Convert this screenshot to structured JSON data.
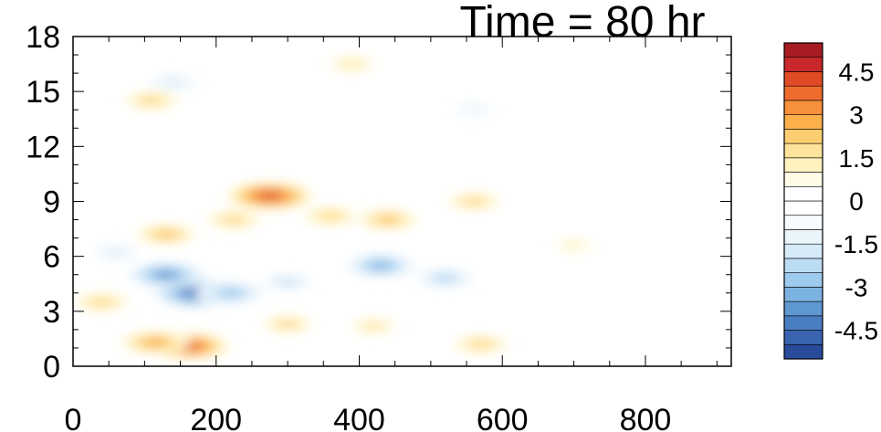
{
  "chart_data": {
    "type": "heatmap",
    "title": "Time = 80 hr",
    "xlabel": "",
    "ylabel": "",
    "xlim": [
      0,
      920
    ],
    "ylim": [
      0,
      18
    ],
    "x_ticks": [
      0,
      200,
      400,
      600,
      800
    ],
    "x_tick_labels": [
      "0",
      "200",
      "400",
      "600",
      "800"
    ],
    "y_ticks": [
      0,
      3,
      6,
      9,
      12,
      15,
      18
    ],
    "y_tick_labels": [
      "0",
      "3",
      "6",
      "9",
      "12",
      "15",
      "18"
    ],
    "colorbar": {
      "min": -5.5,
      "max": 5.5,
      "step": 0.5,
      "tick_values": [
        4.5,
        3,
        1.5,
        0,
        -1.5,
        -3,
        -4.5
      ],
      "tick_labels": [
        "4.5",
        "3",
        "1.5",
        "0",
        "-1.5",
        "-3",
        "-4.5"
      ],
      "colors": [
        "#2a4b9b",
        "#3a63b0",
        "#4a7ec2",
        "#5f97d1",
        "#7cb2e0",
        "#9ccbee",
        "#bcdcf3",
        "#d6eaf8",
        "#e9f4fb",
        "#f6fbfe",
        "#ffffff",
        "#ffffff",
        "#fffbe6",
        "#fff1c0",
        "#fee39a",
        "#fdcd72",
        "#fbb04b",
        "#f7903a",
        "#f06c2c",
        "#e04a25",
        "#c8282a",
        "#a71c22"
      ]
    },
    "features": [
      {
        "x": 160,
        "y": 1.1,
        "value": 4.2
      },
      {
        "x": 115,
        "y": 1.3,
        "value": 3.0
      },
      {
        "x": 300,
        "y": 2.3,
        "value": 1.6
      },
      {
        "x": 420,
        "y": 2.2,
        "value": 1.3
      },
      {
        "x": 570,
        "y": 1.2,
        "value": 2.0
      },
      {
        "x": 175,
        "y": 4.0,
        "value": -5.0
      },
      {
        "x": 130,
        "y": 5.0,
        "value": -3.8
      },
      {
        "x": 220,
        "y": 4.0,
        "value": -3.0
      },
      {
        "x": 300,
        "y": 4.6,
        "value": -1.6
      },
      {
        "x": 430,
        "y": 5.5,
        "value": -3.2
      },
      {
        "x": 520,
        "y": 4.8,
        "value": -2.2
      },
      {
        "x": 130,
        "y": 7.2,
        "value": 2.4
      },
      {
        "x": 225,
        "y": 8.0,
        "value": 2.0
      },
      {
        "x": 275,
        "y": 9.3,
        "value": 4.5
      },
      {
        "x": 360,
        "y": 8.2,
        "value": 2.0
      },
      {
        "x": 440,
        "y": 8.0,
        "value": 2.4
      },
      {
        "x": 560,
        "y": 9.0,
        "value": 1.8
      },
      {
        "x": 700,
        "y": 6.6,
        "value": 0.6
      },
      {
        "x": 110,
        "y": 14.5,
        "value": 2.0
      },
      {
        "x": 140,
        "y": 15.5,
        "value": -1.5
      },
      {
        "x": 390,
        "y": 16.5,
        "value": 1.2
      },
      {
        "x": 560,
        "y": 14.0,
        "value": -0.8
      },
      {
        "x": 40,
        "y": 3.5,
        "value": 2.0
      },
      {
        "x": 60,
        "y": 6.2,
        "value": -1.4
      }
    ]
  }
}
